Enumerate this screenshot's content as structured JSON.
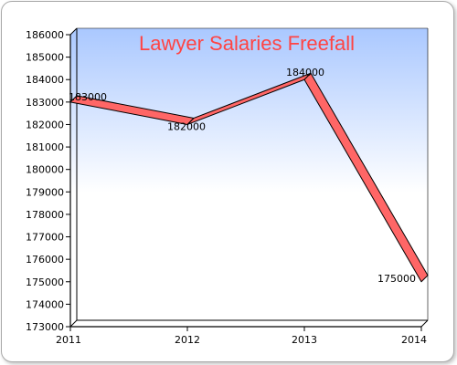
{
  "chart_data": {
    "type": "line",
    "title": "Lawyer Salaries Freefall",
    "categories": [
      "2011",
      "2012",
      "2013",
      "2014"
    ],
    "series": [
      {
        "values": [
          183000,
          182000,
          184000,
          175000
        ]
      }
    ],
    "data_labels": [
      "183000",
      "182000",
      "184000",
      "175000"
    ],
    "yticks": [
      "173000",
      "174000",
      "175000",
      "176000",
      "177000",
      "178000",
      "179000",
      "180000",
      "181000",
      "182000",
      "183000",
      "184000",
      "185000",
      "186000"
    ],
    "ylim": [
      173000,
      186000
    ],
    "xlabel": "",
    "ylabel": "",
    "grid": false,
    "style": "3d-ribbon",
    "colors": {
      "line_fill": "#ff6666",
      "line_stroke": "#000000",
      "title": "#ff4444",
      "bg_top": "#aac8ff",
      "bg_bottom": "#ffffff"
    }
  }
}
